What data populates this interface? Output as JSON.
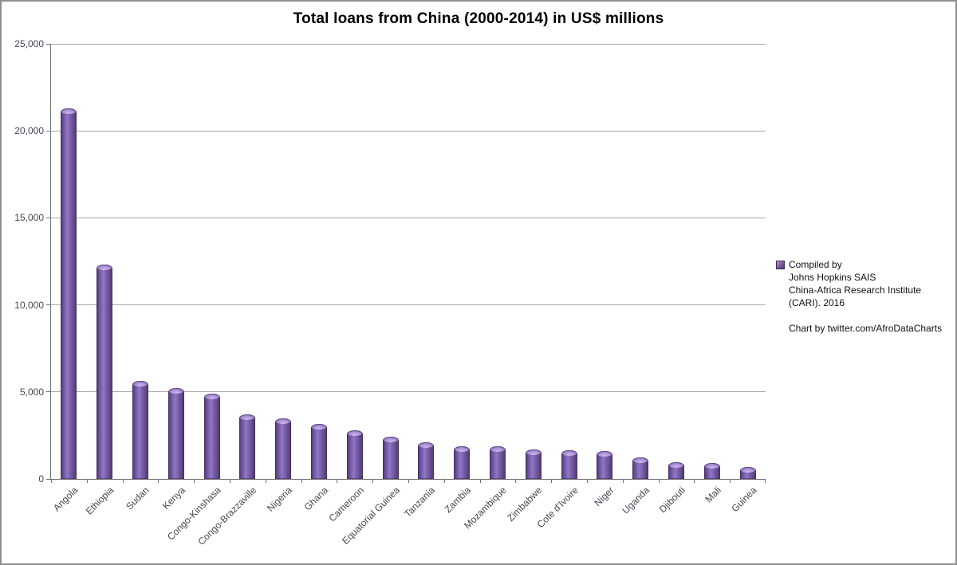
{
  "chart_data": {
    "type": "bar",
    "title": "Total loans from China (2000-2014) in US$ millions",
    "categories": [
      "Angola",
      "Ethiopia",
      "Sudan",
      "Kenya",
      "Congo-Kinshasa",
      "Congo-Brazzaville",
      "Nigeria",
      "Ghana",
      "Cameroon",
      "Equatorial Guinea",
      "Tanzania",
      "Zambia",
      "Mozambique",
      "Zimbabwe",
      "Cote d'Ivoire",
      "Niger",
      "Uganda",
      "Djibouti",
      "Mali",
      "Guinea"
    ],
    "values": [
      21300,
      12300,
      5650,
      5200,
      4900,
      3700,
      3500,
      3150,
      2800,
      2450,
      2100,
      1880,
      1870,
      1700,
      1650,
      1600,
      1250,
      950,
      900,
      700
    ],
    "xlabel": "",
    "ylabel": "",
    "ylim": [
      0,
      25000
    ],
    "ytick_values": [
      0,
      5000,
      10000,
      15000,
      20000,
      25000
    ],
    "ytick_labels": [
      "0",
      "5,000",
      "10,000",
      "15,000",
      "20,000",
      "25,000"
    ],
    "grid": true,
    "legend_position": "right",
    "bar_color_light": "#9176c4",
    "bar_color_dark": "#4e3869",
    "bar_cap_color": "#cdbbe8",
    "gridline_color": "#a8a8a8",
    "axis_color": "#707070",
    "tick_label_color": "#464653"
  },
  "legend": {
    "lines": [
      "Compiled by",
      "Johns Hopkins SAIS",
      "China-Africa Research Institute",
      "(CARI). 2016",
      "",
      "Chart by twitter.com/AfroDataCharts"
    ]
  }
}
